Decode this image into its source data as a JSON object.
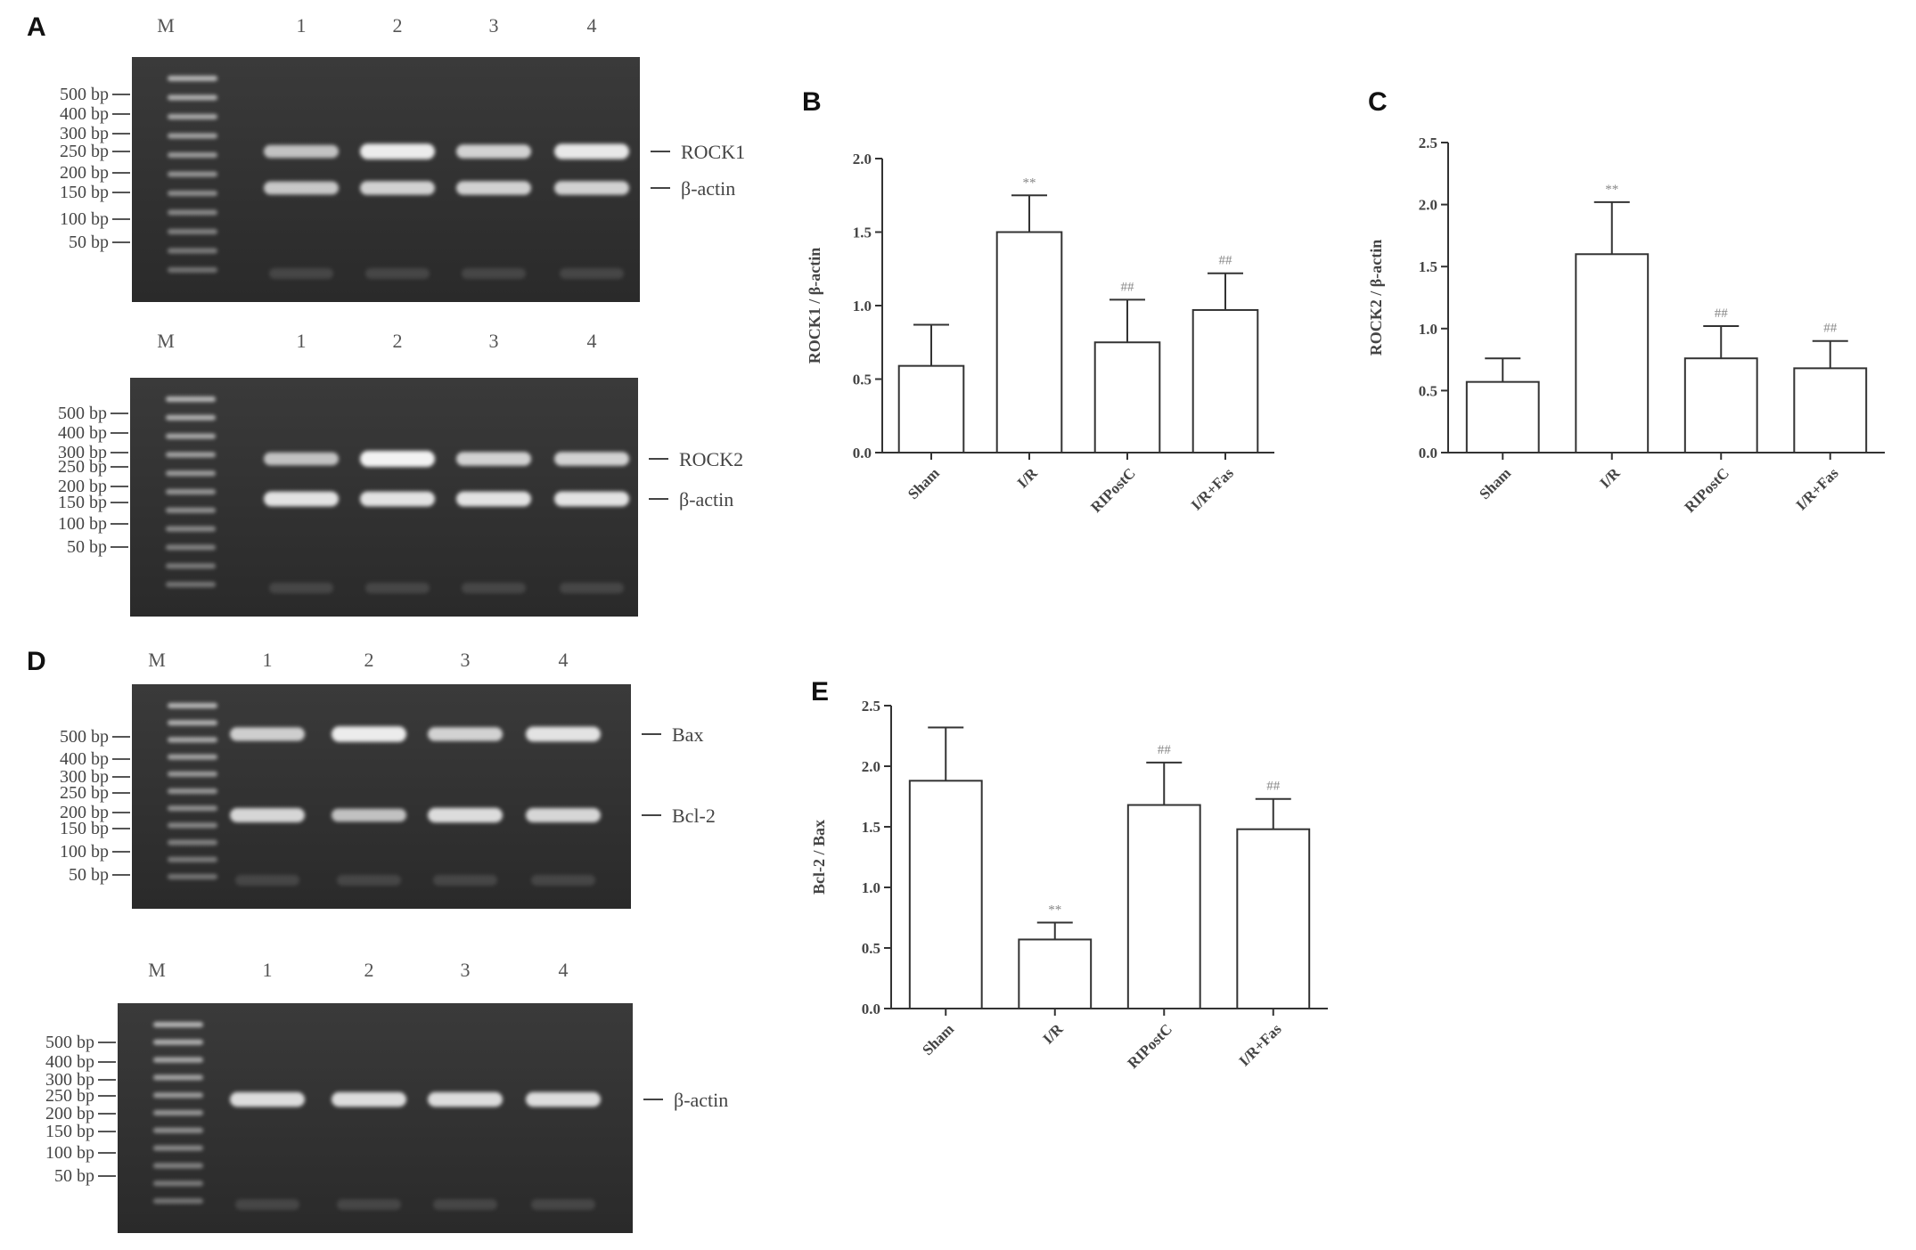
{
  "figure_panels": {
    "A": "A",
    "B": "B",
    "C": "C",
    "D": "D",
    "E": "E"
  },
  "gels": [
    {
      "id": "gel-rock1",
      "lanes": [
        "M",
        "1",
        "2",
        "3",
        "4"
      ],
      "ladder": [
        "500 bp",
        "400 bp",
        "300 bp",
        "250 bp",
        "200 bp",
        "150 bp",
        "100 bp",
        "50 bp"
      ],
      "bands_right": [
        "ROCK1",
        "β-actin"
      ],
      "band_intensity": [
        [
          0.55,
          0.6
        ],
        [
          0.95,
          0.7
        ],
        [
          0.7,
          0.7
        ],
        [
          0.9,
          0.7
        ]
      ]
    },
    {
      "id": "gel-rock2",
      "lanes": [
        "M",
        "1",
        "2",
        "3",
        "4"
      ],
      "ladder": [
        "500 bp",
        "400 bp",
        "300 bp",
        "250 bp",
        "200 bp",
        "150 bp",
        "100 bp",
        "50 bp"
      ],
      "bands_right": [
        "ROCK2",
        "β-actin"
      ],
      "band_intensity": [
        [
          0.55,
          0.85
        ],
        [
          1.0,
          0.85
        ],
        [
          0.7,
          0.85
        ],
        [
          0.7,
          0.85
        ]
      ]
    },
    {
      "id": "gel-bax-bcl2",
      "lanes": [
        "M",
        "1",
        "2",
        "3",
        "4"
      ],
      "ladder": [
        "500 bp",
        "400 bp",
        "300 bp",
        "250 bp",
        "200 bp",
        "150 bp",
        "100 bp",
        "50 bp"
      ],
      "bands_right": [
        "Bax",
        "Bcl-2"
      ],
      "band_intensity": [
        [
          0.65,
          0.75
        ],
        [
          0.95,
          0.55
        ],
        [
          0.7,
          0.8
        ],
        [
          0.85,
          0.75
        ]
      ]
    },
    {
      "id": "gel-actin",
      "lanes": [
        "M",
        "1",
        "2",
        "3",
        "4"
      ],
      "ladder": [
        "500 bp",
        "400 bp",
        "300 bp",
        "250 bp",
        "200 bp",
        "150 bp",
        "100 bp",
        "50 bp"
      ],
      "bands_right": [
        "β-actin"
      ],
      "band_intensity": [
        [
          0.8
        ],
        [
          0.8
        ],
        [
          0.8
        ],
        [
          0.8
        ]
      ]
    }
  ],
  "chart_data": [
    {
      "panel": "B",
      "type": "bar",
      "categories": [
        "Sham",
        "I/R",
        "RIPostC",
        "I/R+Fas"
      ],
      "values": [
        0.59,
        1.5,
        0.75,
        0.97
      ],
      "errors": [
        0.28,
        0.25,
        0.29,
        0.25
      ],
      "annotations": [
        "",
        "**",
        "##",
        "##"
      ],
      "ylabel": "ROCK1 / β-actin",
      "ylim": [
        0,
        2.0
      ],
      "yticks": [
        "0.0",
        "0.5",
        "1.0",
        "1.5",
        "2.0"
      ]
    },
    {
      "panel": "C",
      "type": "bar",
      "categories": [
        "Sham",
        "I/R",
        "RIPostC",
        "I/R+Fas"
      ],
      "values": [
        0.57,
        1.6,
        0.76,
        0.68
      ],
      "errors": [
        0.19,
        0.42,
        0.26,
        0.22
      ],
      "annotations": [
        "",
        "**",
        "##",
        "##"
      ],
      "ylabel": "ROCK2 / β-actin",
      "ylim": [
        0,
        2.5
      ],
      "yticks": [
        "0.0",
        "0.5",
        "1.0",
        "1.5",
        "2.0",
        "2.5"
      ]
    },
    {
      "panel": "E",
      "type": "bar",
      "categories": [
        "Sham",
        "I/R",
        "RIPostC",
        "I/R+Fas"
      ],
      "values": [
        1.88,
        0.57,
        1.68,
        1.48
      ],
      "errors": [
        0.44,
        0.14,
        0.35,
        0.25
      ],
      "annotations": [
        "",
        "**",
        "##",
        "##"
      ],
      "ylabel": "Bcl-2 / Bax",
      "ylim": [
        0,
        2.5
      ],
      "yticks": [
        "0.0",
        "0.5",
        "1.0",
        "1.5",
        "2.0",
        "2.5"
      ]
    }
  ]
}
